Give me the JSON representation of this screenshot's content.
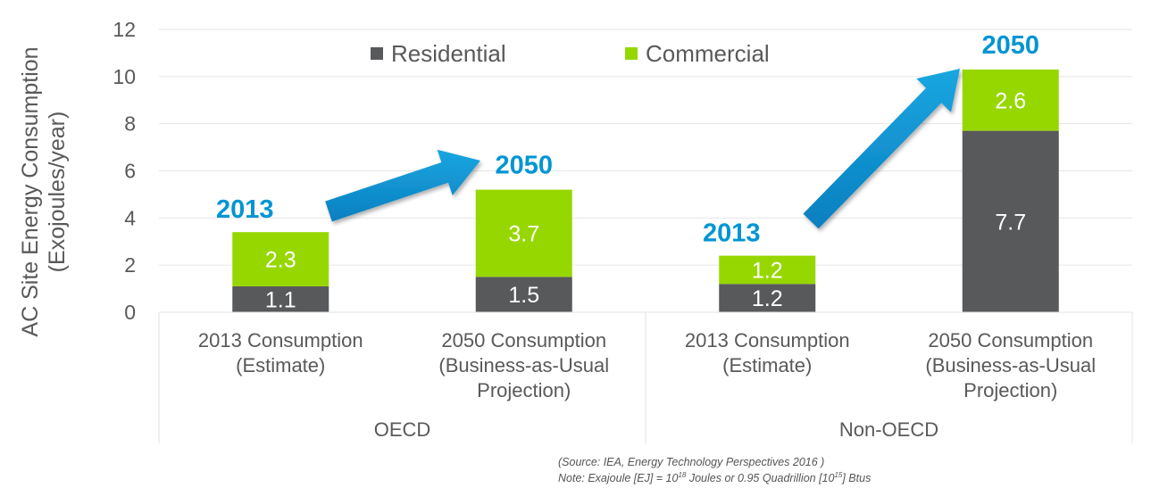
{
  "chart_data": {
    "type": "bar",
    "stacked": true,
    "ylabel": "AC Site Energy Consumption\n(Exojoules/year)",
    "ylim": [
      0,
      12
    ],
    "yticks": [
      0,
      2,
      4,
      6,
      8,
      10,
      12
    ],
    "grid": true,
    "legend_placement": "top",
    "categories": [
      "2013 Consumption\n(Estimate)",
      "2050 Consumption\n(Business-as-Usual\nProjection)",
      "2013 Consumption\n(Estimate)",
      "2050 Consumption\n(Business-as-Usual\nProjection)"
    ],
    "groups": [
      {
        "label": "OECD",
        "categories": [
          0,
          1
        ]
      },
      {
        "label": "Non-OECD",
        "categories": [
          2,
          3
        ]
      }
    ],
    "series": [
      {
        "name": "Residential",
        "color": "#58595b",
        "values": [
          1.1,
          1.5,
          1.2,
          7.7
        ]
      },
      {
        "name": "Commercial",
        "color": "#97d700",
        "values": [
          2.3,
          3.7,
          1.2,
          2.6
        ]
      }
    ],
    "annotations": {
      "year_labels": [
        "2013",
        "2050",
        "2013",
        "2050"
      ],
      "year_label_color": "#0095d3",
      "arrows": [
        {
          "from_category": 0,
          "to_category": 1
        },
        {
          "from_category": 2,
          "to_category": 3
        }
      ]
    }
  },
  "notes": {
    "source": "(Source: IEA, Energy Technology Perspectives 2016 )",
    "note_prefix": "Note: Exajoule [EJ] = 10",
    "note_exp1": "18",
    "note_mid": " Joules or 0.95 Quadrillion [10",
    "note_exp2": "15",
    "note_suffix": "] Btus"
  }
}
